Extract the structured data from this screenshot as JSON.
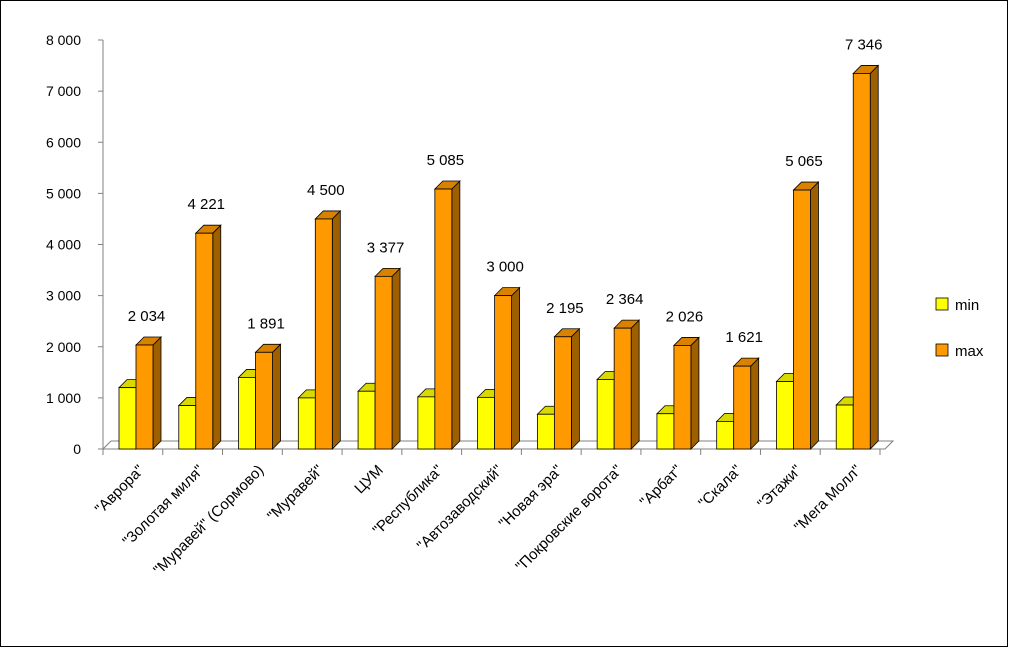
{
  "chart_data": {
    "type": "bar",
    "style": "3d-clustered-column",
    "categories": [
      "\"Аврора\"",
      "\"Золотая миля\"",
      "\"Муравей\" (Сормово)",
      "\"Муравей\"",
      "ЦУМ",
      "\"Республика\"",
      "\"Автозаводский\"",
      "\"Новая эра\"",
      "\"Покровские ворота\"",
      "\"Арбат\"",
      "\"Скала\"",
      "\"Этажи\"",
      "\"Мега Молл\""
    ],
    "series": [
      {
        "name": "min",
        "color": "#FFFF00",
        "values": [
          1200,
          850,
          1400,
          1000,
          1130,
          1020,
          1010,
          680,
          1360,
          690,
          540,
          1320,
          860
        ]
      },
      {
        "name": "max",
        "color": "#FF9900",
        "values": [
          2034,
          4221,
          1891,
          4500,
          3377,
          5085,
          3000,
          2195,
          2364,
          2026,
          1621,
          5065,
          7346
        ]
      }
    ],
    "data_labels": [
      "2 034",
      "4 221",
      "1 891",
      "4 500",
      "3 377",
      "5 085",
      "3 000",
      "2 195",
      "2 364",
      "2 026",
      "1 621",
      "5 065",
      "7 346"
    ],
    "y_ticks": [
      "0",
      "1 000",
      "2 000",
      "3 000",
      "4 000",
      "5 000",
      "6 000",
      "7 000",
      "8 000"
    ],
    "ylim": [
      0,
      8000
    ],
    "grid": false,
    "legend_position": "right"
  }
}
